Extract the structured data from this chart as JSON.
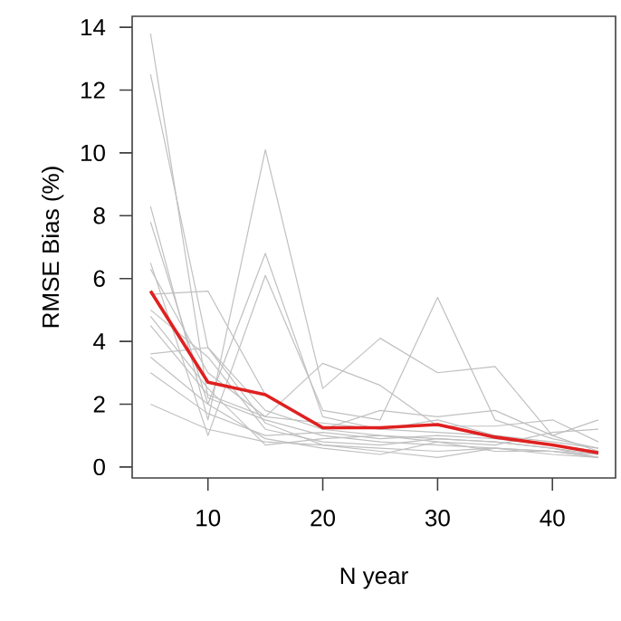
{
  "chart_data": {
    "type": "line",
    "xlabel": "N year",
    "ylabel": "RMSE Bias (%)",
    "x": [
      5,
      10,
      15,
      20,
      25,
      30,
      35,
      40,
      44
    ],
    "xlim": [
      3.4,
      45.5
    ],
    "ylim": [
      -0.35,
      14.35
    ],
    "xticks": [
      10,
      20,
      30,
      40
    ],
    "yticks": [
      0,
      2,
      4,
      6,
      8,
      10,
      12,
      14
    ],
    "grid": false,
    "legend": false,
    "marker": "none",
    "line_style": "solid",
    "series": [
      {
        "color": "#c0c0c0",
        "values": [
          13.8,
          2.2,
          1.5,
          1.0,
          0.8,
          0.7,
          0.6,
          0.5,
          0.4
        ]
      },
      {
        "color": "#c0c0c0",
        "values": [
          12.5,
          3.8,
          1.8,
          1.2,
          1.0,
          0.9,
          0.8,
          0.6,
          0.4
        ]
      },
      {
        "color": "#c0c0c0",
        "values": [
          8.3,
          1.5,
          10.1,
          2.5,
          4.1,
          3.0,
          3.2,
          1.0,
          0.5
        ]
      },
      {
        "color": "#c0c0c0",
        "values": [
          7.8,
          2.0,
          6.8,
          1.6,
          1.2,
          1.5,
          1.0,
          0.7,
          0.5
        ]
      },
      {
        "color": "#c0c0c0",
        "values": [
          6.5,
          1.0,
          6.1,
          1.8,
          1.5,
          5.4,
          1.5,
          0.9,
          0.6
        ]
      },
      {
        "color": "#c0c0c0",
        "values": [
          6.3,
          3.0,
          1.6,
          3.3,
          2.6,
          1.3,
          1.3,
          1.5,
          0.8
        ]
      },
      {
        "color": "#c0c0c0",
        "values": [
          5.5,
          5.6,
          2.3,
          1.2,
          1.8,
          1.6,
          1.8,
          1.0,
          1.5
        ]
      },
      {
        "color": "#c0c0c0",
        "values": [
          5.0,
          3.5,
          1.2,
          0.8,
          0.7,
          0.9,
          0.8,
          0.6,
          0.3
        ]
      },
      {
        "color": "#c0c0c0",
        "values": [
          4.8,
          2.5,
          0.7,
          0.9,
          1.0,
          0.8,
          0.7,
          1.1,
          1.2
        ]
      },
      {
        "color": "#c0c0c0",
        "values": [
          3.6,
          3.8,
          1.4,
          0.7,
          0.6,
          0.5,
          0.6,
          0.4,
          0.3
        ]
      },
      {
        "color": "#c0c0c0",
        "values": [
          3.5,
          2.0,
          0.9,
          0.6,
          0.4,
          0.8,
          0.5,
          0.5,
          0.3
        ]
      },
      {
        "color": "#c0c0c0",
        "values": [
          3.0,
          1.7,
          1.0,
          1.1,
          0.9,
          1.0,
          0.9,
          0.7,
          0.5
        ]
      },
      {
        "color": "#c0c0c0",
        "values": [
          2.0,
          1.2,
          0.8,
          0.7,
          0.5,
          0.3,
          0.6,
          0.5,
          0.3
        ]
      },
      {
        "color": "#c0c0c0",
        "values": [
          4.5,
          2.3,
          1.6,
          1.4,
          1.2,
          1.1,
          1.0,
          0.8,
          0.6
        ]
      },
      {
        "color": "#e02020",
        "values": [
          5.6,
          2.7,
          2.3,
          1.25,
          1.25,
          1.35,
          0.95,
          0.7,
          0.45
        ]
      }
    ]
  }
}
